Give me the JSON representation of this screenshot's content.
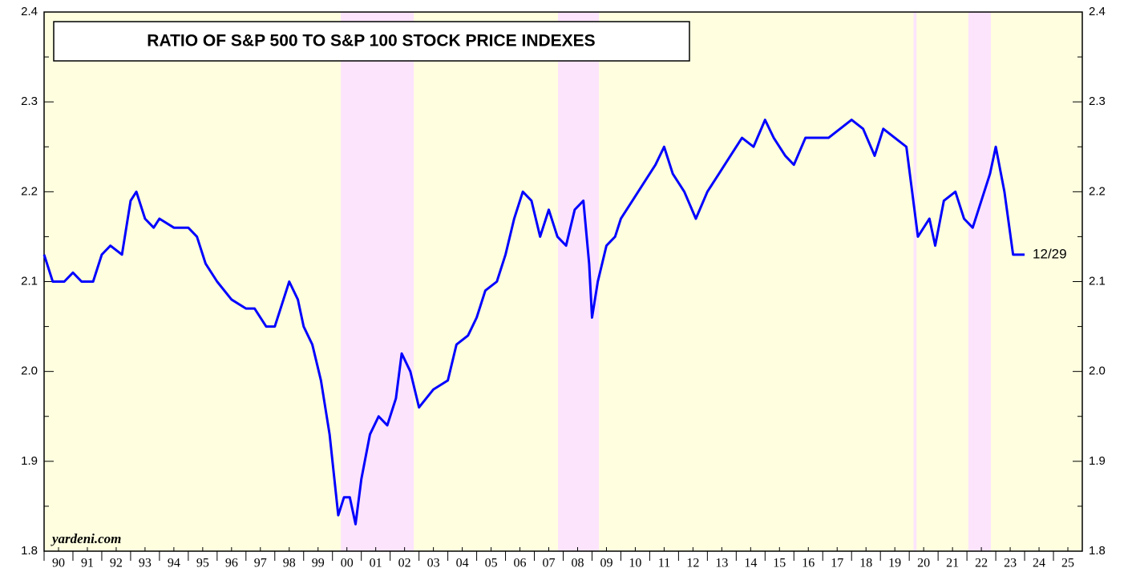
{
  "chart_data": {
    "type": "line",
    "title": "RATIO OF S&P 500 TO S&P 100 STOCK PRICE INDEXES",
    "source": "yardeni.com",
    "annotation": "12/29",
    "xlim": [
      1990,
      2026
    ],
    "xticks": [
      {
        "value": 1990.5,
        "label": "90"
      },
      {
        "value": 1991.5,
        "label": "91"
      },
      {
        "value": 1992.5,
        "label": "92"
      },
      {
        "value": 1993.5,
        "label": "93"
      },
      {
        "value": 1994.5,
        "label": "94"
      },
      {
        "value": 1995.5,
        "label": "95"
      },
      {
        "value": 1996.5,
        "label": "96"
      },
      {
        "value": 1997.5,
        "label": "97"
      },
      {
        "value": 1998.5,
        "label": "98"
      },
      {
        "value": 1999.5,
        "label": "99"
      },
      {
        "value": 2000.5,
        "label": "00"
      },
      {
        "value": 2001.5,
        "label": "01"
      },
      {
        "value": 2002.5,
        "label": "02"
      },
      {
        "value": 2003.5,
        "label": "03"
      },
      {
        "value": 2004.5,
        "label": "04"
      },
      {
        "value": 2005.5,
        "label": "05"
      },
      {
        "value": 2006.5,
        "label": "06"
      },
      {
        "value": 2007.5,
        "label": "07"
      },
      {
        "value": 2008.5,
        "label": "08"
      },
      {
        "value": 2009.5,
        "label": "09"
      },
      {
        "value": 2010.5,
        "label": "10"
      },
      {
        "value": 2011.5,
        "label": "11"
      },
      {
        "value": 2012.5,
        "label": "12"
      },
      {
        "value": 2013.5,
        "label": "13"
      },
      {
        "value": 2014.5,
        "label": "14"
      },
      {
        "value": 2015.5,
        "label": "15"
      },
      {
        "value": 2016.5,
        "label": "16"
      },
      {
        "value": 2017.5,
        "label": "17"
      },
      {
        "value": 2018.5,
        "label": "18"
      },
      {
        "value": 2019.5,
        "label": "19"
      },
      {
        "value": 2020.5,
        "label": "20"
      },
      {
        "value": 2021.5,
        "label": "21"
      },
      {
        "value": 2022.5,
        "label": "22"
      },
      {
        "value": 2023.5,
        "label": "23"
      },
      {
        "value": 2024.5,
        "label": "24"
      },
      {
        "value": 2025.5,
        "label": "25"
      }
    ],
    "ylim": [
      1.8,
      2.4
    ],
    "yticks": [
      1.8,
      1.9,
      {
        "value": 2.0,
        "label": "2.0"
      },
      2.1,
      2.2,
      2.3,
      2.4
    ],
    "background": "#ffffe0",
    "shaded_color": "#fce4fc",
    "shaded_periods": [
      [
        2000.29,
        2002.82
      ],
      [
        2007.82,
        2009.24
      ],
      [
        2020.15,
        2020.25
      ],
      [
        2022.05,
        2022.83
      ]
    ],
    "x": [
      1990.0,
      1990.3,
      1990.7,
      1991.0,
      1991.3,
      1991.7,
      1992.0,
      1992.3,
      1992.7,
      1993.0,
      1993.2,
      1993.5,
      1993.8,
      1994.0,
      1994.5,
      1995.0,
      1995.3,
      1995.6,
      1996.0,
      1996.5,
      1997.0,
      1997.3,
      1997.7,
      1998.0,
      1998.3,
      1998.5,
      1998.8,
      1999.0,
      1999.3,
      1999.6,
      1999.9,
      2000.2,
      2000.4,
      2000.6,
      2000.8,
      2001.0,
      2001.3,
      2001.6,
      2001.9,
      2002.2,
      2002.4,
      2002.7,
      2003.0,
      2003.5,
      2004.0,
      2004.3,
      2004.7,
      2005.0,
      2005.3,
      2005.7,
      2006.0,
      2006.3,
      2006.6,
      2006.9,
      2007.2,
      2007.5,
      2007.8,
      2008.1,
      2008.4,
      2008.7,
      2008.9,
      2009.0,
      2009.2,
      2009.5,
      2009.8,
      2010.0,
      2010.4,
      2010.8,
      2011.2,
      2011.5,
      2011.8,
      2012.2,
      2012.6,
      2013.0,
      2013.4,
      2013.8,
      2014.2,
      2014.6,
      2015.0,
      2015.3,
      2015.7,
      2016.0,
      2016.4,
      2016.8,
      2017.2,
      2017.6,
      2018.0,
      2018.4,
      2018.8,
      2019.1,
      2019.5,
      2019.9,
      2020.1,
      2020.3,
      2020.7,
      2020.9,
      2021.2,
      2021.6,
      2021.9,
      2022.2,
      2022.5,
      2022.8,
      2023.0,
      2023.3,
      2023.6,
      2023.9,
      2024.0
    ],
    "series": [
      {
        "name": "S&P 500 / S&P 100",
        "color": "#0000ff",
        "values": [
          2.13,
          2.1,
          2.1,
          2.11,
          2.1,
          2.1,
          2.13,
          2.14,
          2.13,
          2.19,
          2.2,
          2.17,
          2.16,
          2.17,
          2.16,
          2.16,
          2.15,
          2.12,
          2.1,
          2.08,
          2.07,
          2.07,
          2.05,
          2.05,
          2.08,
          2.1,
          2.08,
          2.05,
          2.03,
          1.99,
          1.93,
          1.84,
          1.86,
          1.86,
          1.83,
          1.88,
          1.93,
          1.95,
          1.94,
          1.97,
          2.02,
          2.0,
          1.96,
          1.98,
          1.99,
          2.03,
          2.04,
          2.06,
          2.09,
          2.1,
          2.13,
          2.17,
          2.2,
          2.19,
          2.15,
          2.18,
          2.15,
          2.14,
          2.18,
          2.19,
          2.12,
          2.06,
          2.1,
          2.14,
          2.15,
          2.17,
          2.19,
          2.21,
          2.23,
          2.25,
          2.22,
          2.2,
          2.17,
          2.2,
          2.22,
          2.24,
          2.26,
          2.25,
          2.28,
          2.26,
          2.24,
          2.23,
          2.26,
          2.26,
          2.26,
          2.27,
          2.28,
          2.27,
          2.24,
          2.27,
          2.26,
          2.25,
          2.2,
          2.15,
          2.17,
          2.14,
          2.19,
          2.2,
          2.17,
          2.16,
          2.19,
          2.22,
          2.25,
          2.2,
          2.13,
          2.13,
          2.13
        ]
      }
    ]
  }
}
